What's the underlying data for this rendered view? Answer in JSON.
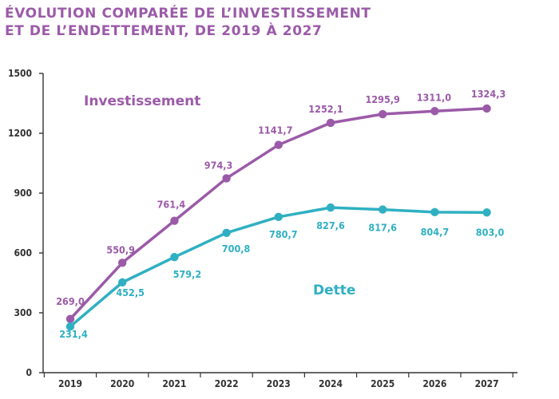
{
  "title_lines": [
    "ÉVOLUTION COMPARÉE DE L’INVESTISSEMENT",
    "ET DE L’ENDETTEMENT, DE 2019 À 2027"
  ],
  "colors": {
    "title": "#9b5aa8",
    "investissement": "#9b5aa8",
    "dette": "#2fb0c2",
    "axis": "#333333"
  },
  "chart_data": {
    "type": "line",
    "title": "ÉVOLUTION COMPARÉE DE L’INVESTISSEMENT ET DE L’ENDETTEMENT, DE 2019 À 2027",
    "xlabel": "",
    "ylabel": "",
    "categories": [
      "2019",
      "2020",
      "2021",
      "2022",
      "2023",
      "2024",
      "2025",
      "2026",
      "2027"
    ],
    "ylim": [
      0,
      1500
    ],
    "yticks": [
      0,
      300,
      600,
      900,
      1200,
      1500
    ],
    "grid": false,
    "series": [
      {
        "name": "Investissement",
        "color": "#9b5aa8",
        "values": [
          269.0,
          550.9,
          761.4,
          974.3,
          1141.7,
          1252.1,
          1295.9,
          1311.0,
          1324.3
        ],
        "labels": [
          "269,0",
          "550,9",
          "761,4",
          "974,3",
          "1141,7",
          "1252,1",
          "1295,9",
          "1311,0",
          "1324,3"
        ]
      },
      {
        "name": "Dette",
        "color": "#2fb0c2",
        "values": [
          231.4,
          452.5,
          579.2,
          700.8,
          780.7,
          827.6,
          817.6,
          804.7,
          803.0
        ],
        "labels": [
          "231,4",
          "452,5",
          "579,2",
          "700,8",
          "780,7",
          "827,6",
          "817,6",
          "804,7",
          "803,0"
        ]
      }
    ]
  }
}
